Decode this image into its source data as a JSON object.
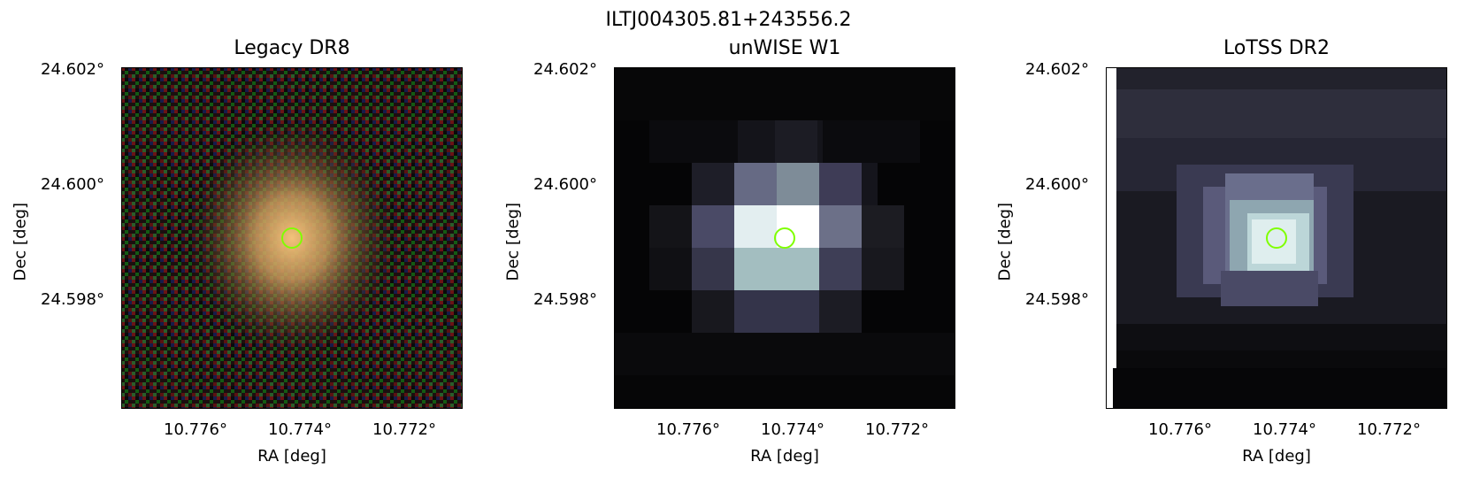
{
  "suptitle": "ILTJ004305.81+243556.2",
  "panels": [
    {
      "title": "Legacy DR8"
    },
    {
      "title": "unWISE W1"
    },
    {
      "title": "LoTSS DR2"
    }
  ],
  "axes": {
    "ylabel": "Dec [deg]",
    "xlabel": "RA [deg]",
    "yticks": [
      "24.602°",
      "24.600°",
      "24.598°"
    ],
    "xticks": [
      "10.776°",
      "10.774°",
      "10.772°"
    ]
  },
  "marker_color": "#7fff00"
}
